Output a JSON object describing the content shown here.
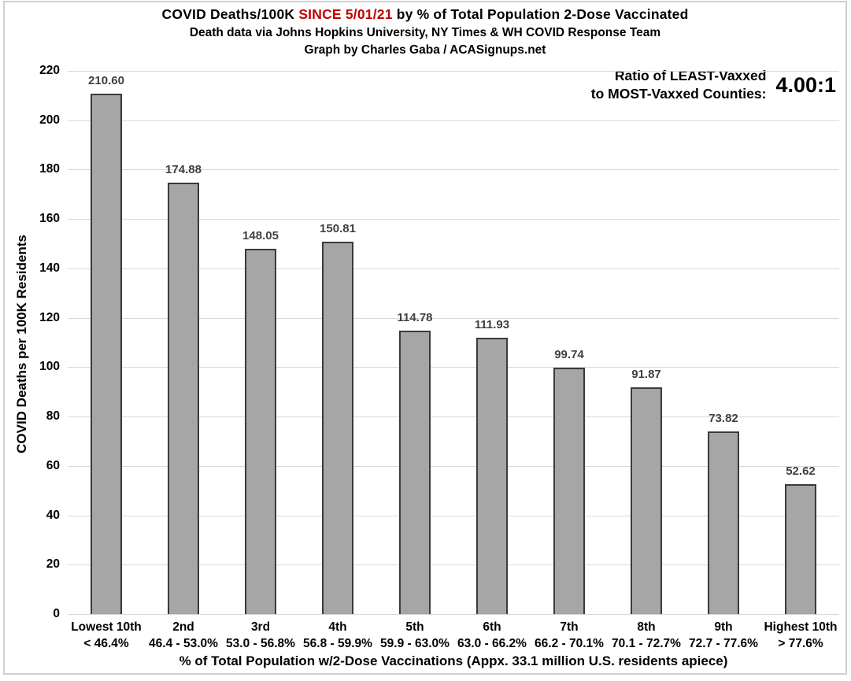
{
  "header": {
    "title_parts": [
      {
        "text": "COVID Deaths/100K "
      },
      {
        "text": "SINCE 5/01/21",
        "highlight": true
      },
      {
        "text": " by % of Total Population 2-Dose Vaccinated"
      }
    ],
    "subtitle": "Death data via Johns Hopkins University, NY Times & WH COVID Response Team",
    "credit": "Graph by Charles Gaba / ACASignups.net"
  },
  "annotation": {
    "label_line1": "Ratio of LEAST-Vaxxed",
    "label_line2": "to MOST-Vaxxed Counties:",
    "value": "4.00:1"
  },
  "chart_data": {
    "type": "bar",
    "title": "COVID Deaths/100K SINCE 5/01/21 by % of Total Population 2-Dose Vaccinated",
    "categories": [
      {
        "decile": "Lowest 10th",
        "range": "< 46.4%"
      },
      {
        "decile": "2nd",
        "range": "46.4 - 53.0%"
      },
      {
        "decile": "3rd",
        "range": "53.0 - 56.8%"
      },
      {
        "decile": "4th",
        "range": "56.8 - 59.9%"
      },
      {
        "decile": "5th",
        "range": "59.9 - 63.0%"
      },
      {
        "decile": "6th",
        "range": "63.0 - 66.2%"
      },
      {
        "decile": "7th",
        "range": "66.2 - 70.1%"
      },
      {
        "decile": "8th",
        "range": "70.1 - 72.7%"
      },
      {
        "decile": "9th",
        "range": "72.7 - 77.6%"
      },
      {
        "decile": "Highest 10th",
        "range": "> 77.6%"
      }
    ],
    "values": [
      210.6,
      174.88,
      148.05,
      150.81,
      114.78,
      111.93,
      99.74,
      91.87,
      73.82,
      52.62
    ],
    "ylabel": "COVID Deaths per 100K Residents",
    "xlabel": "% of Total Population w/2-Dose Vaccinations (Appx. 33.1 million U.S. residents apiece)",
    "ylim": [
      0,
      220
    ],
    "ytick_step": 20,
    "grid": true,
    "legend": "none",
    "colors": {
      "bar_fill": "#a6a6a6",
      "bar_border": "#3a3a3a",
      "grid": "#d9d9d9",
      "value_label": "#404040",
      "title_highlight": "#c00000",
      "frame_border": "#cfcfcf"
    }
  }
}
